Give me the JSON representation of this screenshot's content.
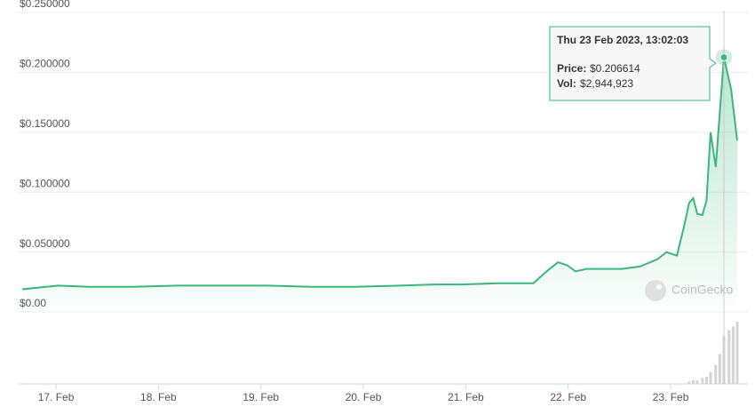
{
  "chart_data": {
    "type": "line",
    "ylim": [
      0,
      0.25
    ],
    "yticks": [
      {
        "value": 0,
        "label": "$0.00"
      },
      {
        "value": 0.05,
        "label": "$0.050000"
      },
      {
        "value": 0.1,
        "label": "$0.100000"
      },
      {
        "value": 0.15,
        "label": "$0.150000"
      },
      {
        "value": 0.2,
        "label": "$0.200000"
      },
      {
        "value": 0.25,
        "label": "$0.250000"
      }
    ],
    "xlim": [
      16.67,
      23.65
    ],
    "xticks": [
      {
        "value": 17,
        "label": "17. Feb"
      },
      {
        "value": 18,
        "label": "18. Feb"
      },
      {
        "value": 19,
        "label": "19. Feb"
      },
      {
        "value": 20,
        "label": "20. Feb"
      },
      {
        "value": 21,
        "label": "21. Feb"
      },
      {
        "value": 22,
        "label": "22. Feb"
      },
      {
        "value": 23,
        "label": "23. Feb"
      }
    ],
    "grid": true,
    "series": [
      {
        "name": "Price:",
        "color": "#3bb77e",
        "x": [
          16.67,
          17.02,
          17.32,
          17.75,
          18.19,
          18.62,
          19.06,
          19.49,
          19.92,
          20.36,
          20.7,
          20.96,
          21.31,
          21.66,
          21.79,
          21.9,
          21.99,
          22.07,
          22.18,
          22.52,
          22.7,
          22.87,
          22.96,
          23.06,
          23.13,
          23.18,
          23.22,
          23.26,
          23.31,
          23.35,
          23.39,
          23.44,
          23.52,
          23.59,
          23.65
        ],
        "values": [
          0.013,
          0.016,
          0.015,
          0.015,
          0.016,
          0.016,
          0.016,
          0.015,
          0.015,
          0.016,
          0.017,
          0.017,
          0.018,
          0.018,
          0.028,
          0.0355,
          0.033,
          0.028,
          0.03,
          0.03,
          0.032,
          0.038,
          0.044,
          0.041,
          0.065,
          0.085,
          0.089,
          0.076,
          0.075,
          0.087,
          0.144,
          0.115,
          0.206614,
          0.18,
          0.137
        ]
      },
      {
        "name": "Vol:",
        "color": "#d4d4d4",
        "x": [
          23.18,
          23.22,
          23.26,
          23.31,
          23.35,
          23.39,
          23.44,
          23.48,
          23.52,
          23.57,
          23.61,
          23.65
        ],
        "values": [
          147246,
          220869,
          220869,
          368115,
          441738,
          736230,
          1177968,
          1840575,
          2944923,
          3313035,
          3533904,
          3828396
        ]
      }
    ],
    "tooltip": {
      "title": "Thu 23 Feb 2023, 13:02:03",
      "price": "$0.206614",
      "vol": "$2,944,923",
      "index": 32
    },
    "watermark": "CoinGecko"
  }
}
